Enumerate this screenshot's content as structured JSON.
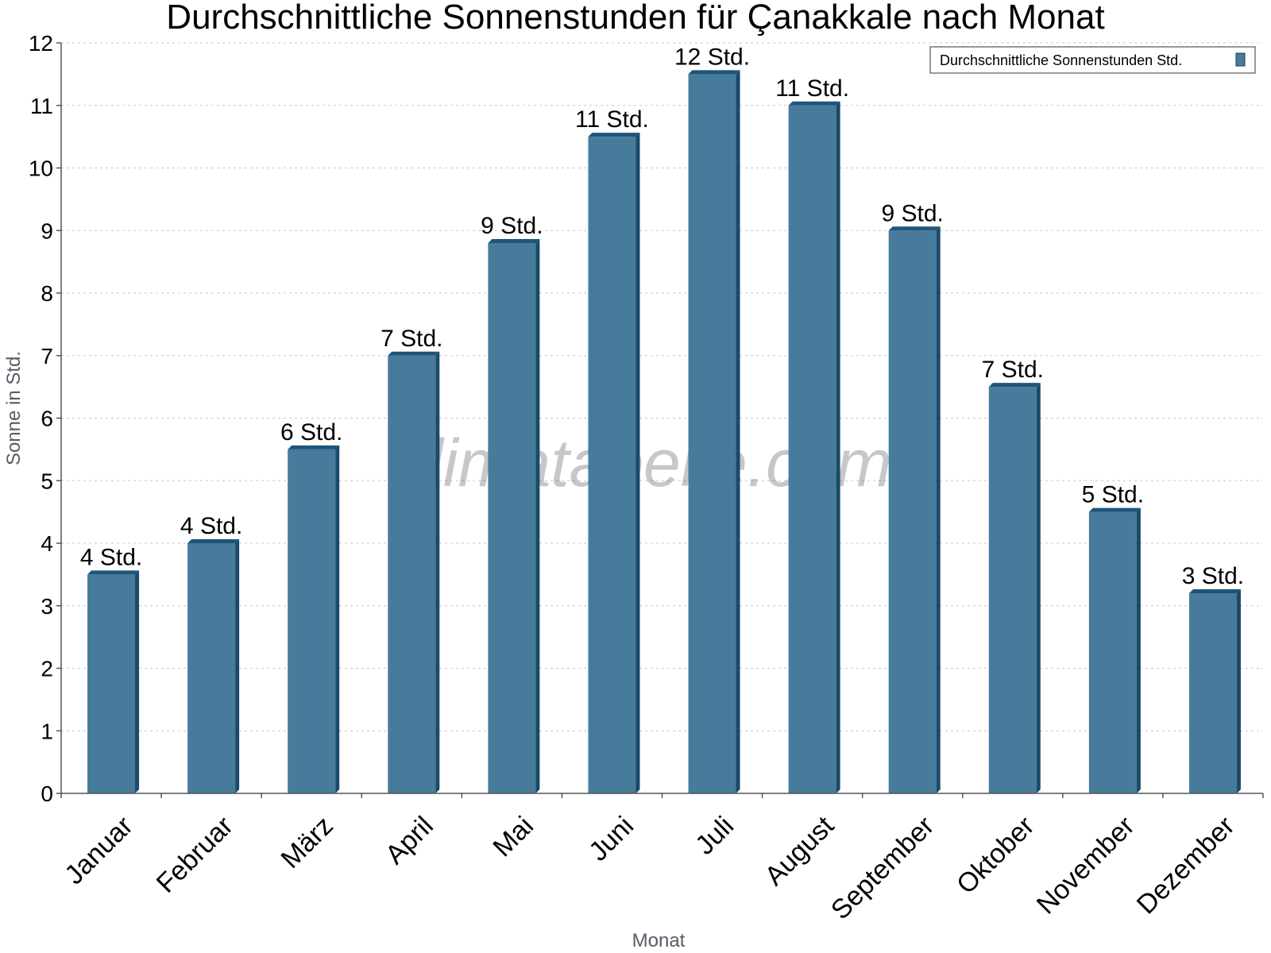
{
  "chart_data": {
    "type": "bar",
    "title": "Durchschnittliche Sonnenstunden für Çanakkale nach Monat",
    "xlabel": "Monat",
    "ylabel": "Sonne in Std.",
    "ylim": [
      0,
      12
    ],
    "yticks": [
      "0",
      "1",
      "2",
      "3",
      "4",
      "5",
      "6",
      "7",
      "8",
      "9",
      "10",
      "11",
      "12"
    ],
    "categories": [
      "Januar",
      "Februar",
      "März",
      "April",
      "Mai",
      "Juni",
      "Juli",
      "August",
      "September",
      "Oktober",
      "November",
      "Dezember"
    ],
    "series": [
      {
        "name": "Durchschnittliche Sonnenstunden Std.",
        "color": "#477b9c",
        "values": [
          3.5,
          4.0,
          5.5,
          7.0,
          8.8,
          10.5,
          11.5,
          11.0,
          9.0,
          6.5,
          4.5,
          3.2
        ],
        "labels": [
          "4 Std.",
          "4 Std.",
          "6 Std.",
          "7 Std.",
          "9 Std.",
          "11 Std.",
          "12 Std.",
          "11 Std.",
          "9 Std.",
          "7 Std.",
          "5 Std.",
          "3 Std."
        ]
      }
    ],
    "grid": true,
    "legend_position": "top-right"
  },
  "watermark": "klimatabelle.com",
  "colors": {
    "bar_front": "#477b9c",
    "bar_side": "#1a4a6a",
    "bar_top": "#1e5579"
  }
}
